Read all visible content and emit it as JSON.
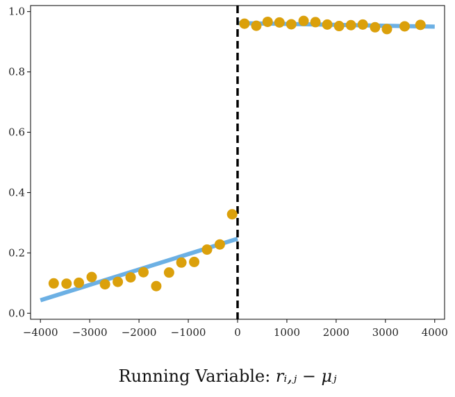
{
  "chart_data": {
    "type": "scatter",
    "xlabel_text": "Running Variable: ",
    "xlabel_math": "rᵢ,ⱼ − μⱼ",
    "xlim": [
      -4200,
      4200
    ],
    "ylim": [
      -0.02,
      1.02
    ],
    "xticks": [
      -4000,
      -3000,
      -2000,
      -1000,
      0,
      1000,
      2000,
      3000,
      4000
    ],
    "xtick_labels": [
      "−4000",
      "−3000",
      "−2000",
      "−1000",
      "0",
      "1000",
      "2000",
      "3000",
      "4000"
    ],
    "yticks": [
      0.0,
      0.2,
      0.4,
      0.6,
      0.8,
      1.0
    ],
    "ytick_labels": [
      "0.0",
      "0.2",
      "0.4",
      "0.6",
      "0.8",
      "1.0"
    ],
    "cutoff": 0,
    "colors": {
      "points": "#DBA00B",
      "fit": "#6CB0E4",
      "cutoff": "#000000"
    },
    "points": [
      {
        "x": -3730,
        "y": 0.099
      },
      {
        "x": -3470,
        "y": 0.098
      },
      {
        "x": -3220,
        "y": 0.101
      },
      {
        "x": -2960,
        "y": 0.12
      },
      {
        "x": -2690,
        "y": 0.096
      },
      {
        "x": -2430,
        "y": 0.104
      },
      {
        "x": -2170,
        "y": 0.119
      },
      {
        "x": -1910,
        "y": 0.136
      },
      {
        "x": -1650,
        "y": 0.09
      },
      {
        "x": -1390,
        "y": 0.135
      },
      {
        "x": -1140,
        "y": 0.168
      },
      {
        "x": -880,
        "y": 0.17
      },
      {
        "x": -620,
        "y": 0.211
      },
      {
        "x": -360,
        "y": 0.228
      },
      {
        "x": -110,
        "y": 0.328
      },
      {
        "x": 140,
        "y": 0.96
      },
      {
        "x": 380,
        "y": 0.953
      },
      {
        "x": 610,
        "y": 0.966
      },
      {
        "x": 850,
        "y": 0.964
      },
      {
        "x": 1090,
        "y": 0.958
      },
      {
        "x": 1340,
        "y": 0.969
      },
      {
        "x": 1580,
        "y": 0.965
      },
      {
        "x": 1820,
        "y": 0.957
      },
      {
        "x": 2060,
        "y": 0.952
      },
      {
        "x": 2300,
        "y": 0.955
      },
      {
        "x": 2540,
        "y": 0.957
      },
      {
        "x": 2790,
        "y": 0.948
      },
      {
        "x": 3030,
        "y": 0.942
      },
      {
        "x": 3390,
        "y": 0.951
      },
      {
        "x": 3710,
        "y": 0.956
      }
    ],
    "fit_lines": [
      {
        "x": [
          -4000,
          0
        ],
        "y": [
          0.043,
          0.247
        ]
      },
      {
        "x": [
          0,
          4000
        ],
        "y": [
          0.962,
          0.95
        ]
      }
    ]
  }
}
